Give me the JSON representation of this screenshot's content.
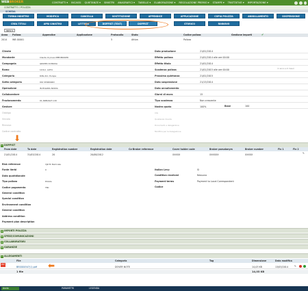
{
  "topbar": {
    "logo_a": "WEB",
    "logo_b": "BROKER",
    "menu": [
      "CONTRATTI ▾",
      "INCASSI",
      "QUIETANZE ▾",
      "SINISTRI",
      "ANAGRAFICI ▾",
      "TABELLE ▾",
      "ELABORAZIONE ▾",
      "REGOLAZIONE PREMIO ▾",
      "STAMPE ▾",
      "TRATTATIVE ▾",
      "IMPORTAZIONE ▾"
    ]
  },
  "breadcrumb": "CONTRATTO / POLIZZA",
  "subtitle": "SCHEDA",
  "buttons_row1": [
    "TORNA INDIETRO",
    "MODIFICA",
    "CANCELLA",
    "SOSTITUZIONE",
    "APPENDICE",
    "APPLICAZIONE",
    "COPIA POLIZZA",
    "ANNULLAMENTO",
    "SOSPENSIONE"
  ],
  "buttons_row2": [
    "CREA TITOLI",
    "APRI SINISTRO",
    "LETTERA",
    "DOPPIST (TEXT)",
    "DOPPIST",
    "STORICO",
    "RINNOVO"
  ],
  "info_button": "INFO ▾",
  "summary": {
    "headers": [
      "Anno",
      "Polizza",
      "Appendice",
      "Applicazione",
      "Protocollo",
      "Stato",
      "Codice polizza",
      "Gestione importi"
    ],
    "values": [
      "2014",
      "WB 00001",
      "",
      "",
      "5",
      "Attiva",
      "Polizza",
      ""
    ]
  },
  "left_fields": [
    {
      "l": "Cliente",
      "v": ""
    },
    {
      "l": "Mandante",
      "v": "Cliente di prova WEB BROKER"
    },
    {
      "l": "Compagnia",
      "v": "GRUPPO DI PROVA"
    },
    {
      "l": "Ramo",
      "v": "10 R.C. AUTO"
    },
    {
      "l": "Categoria",
      "v": "Ditta R.C. Europa"
    },
    {
      "l": "Sotto categoria",
      "v": "001 STANDARD"
    },
    {
      "l": "Operazione",
      "v": "IN POLIZZA NUOVA"
    },
    {
      "l": "Collaboratore",
      "v": ""
    },
    {
      "l": "Frazionamento",
      "v": "01 ANNUALE 1.00"
    },
    {
      "l": "Gestore",
      "v": ""
    }
  ],
  "left_faded": [
    "Obbligo",
    "Vincolo",
    "Rinnovo",
    "Codice contratto"
  ],
  "right_fields": [
    {
      "l": "Data produzione",
      "v": "21/01/2014"
    },
    {
      "l": "Effetto polizza",
      "v": "21/01/2014 alle ore 00:00"
    },
    {
      "l": "Effetto titolo",
      "v": "21/01/2014"
    },
    {
      "l": "Scadenza polizza",
      "v": "21/01/2015 alle ore 00:00"
    },
    {
      "l": "Prossima quietanza",
      "v": "21/01/2015"
    },
    {
      "l": "Data sospensione",
      "v": "21/13/2014"
    },
    {
      "l": "Data annullamento",
      "v": ""
    },
    {
      "l": "Giorni di mora",
      "v": "15"
    },
    {
      "l": "Tipo scadenza",
      "v": "Non crescente"
    },
    {
      "l": "Nostra quota",
      "v": "100%"
    }
  ],
  "right_faded": [
    "CIG",
    "Quietanza dovuta",
    "Documenti e delegazione",
    "Modifica per la delegazione"
  ],
  "extra_right": {
    "rinnovo_label": "(1 anno e 0 mesi)",
    "base_label": "Base",
    "base_value": "100"
  },
  "section_title": "DOPPIST",
  "doppist_headers": [
    "From date",
    "To date",
    "Registration number",
    "Registration date",
    "Co-Broker reference",
    "Cover holder code",
    "Broker pseudonym",
    "Broker number",
    "Flx 1",
    "Flx 2"
  ],
  "doppist_row": [
    "21/01/2014",
    "31/03/2014",
    "20",
    "20/08/2012",
    "",
    "XXXXX",
    "XXXXXX",
    "XXXXX",
    "",
    ""
  ],
  "doppist_fields": [
    {
      "l": "Risk reference",
      "v": "VJZ-TC Nominale"
    },
    {
      "l": "Fonte Verbi",
      "v": "0"
    },
    {
      "l": "Data quotidianate",
      "v": ""
    },
    {
      "l": "Tipo polizza",
      "v": "Polizza"
    },
    {
      "l": "Codice pagamento",
      "v": "TBC"
    },
    {
      "l": "General condition",
      "v": ""
    },
    {
      "l": "Special condition",
      "v": ""
    },
    {
      "l": "Environment condition",
      "v": ""
    },
    {
      "l": "General condition",
      "v": ""
    },
    {
      "l": "Address condition",
      "v": ""
    },
    {
      "l": "Payment plan description",
      "v": ""
    }
  ],
  "doppist_right": [
    {
      "l": "Italian Levy",
      "v": "Sì"
    },
    {
      "l": "Condition received",
      "v": "Nessuno"
    },
    {
      "l": "Payment terms",
      "v": "Payment to Local Correspondent"
    },
    {
      "l": "Codice",
      "v": ""
    }
  ],
  "sections": [
    "IMPORTI POLIZZA",
    "SPESE/COMUNICAZIONI",
    "COLLABORATORI",
    "GARANZIE",
    "ALLEGAMENTI"
  ],
  "attachments": {
    "headers": [
      "File",
      "Categoria",
      "Tag",
      "Dimensione",
      "Data modifica"
    ],
    "row": [
      "BE0000347(1).pdf",
      "DOVER NOTE",
      "",
      "14,03 KB",
      "13/03/2014"
    ],
    "footer": [
      "1 file",
      "",
      "",
      "14,03 KB",
      ""
    ]
  },
  "taskbar": [
    "Avvio",
    "PARAMETRI",
    "LEGENDA"
  ]
}
